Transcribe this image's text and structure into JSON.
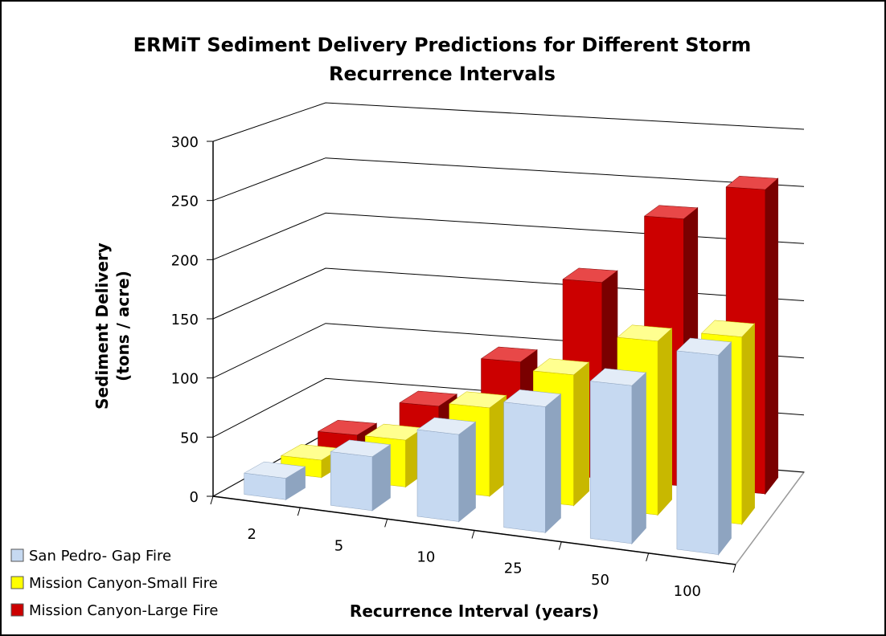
{
  "chart_data": {
    "type": "bar3d",
    "title": "ERMiT Sediment Delivery Predictions for Different Storm Recurrence Intervals",
    "x_label": "Recurrence Interval (years)",
    "y_label": "Sediment Delivery (tons / acre)",
    "categories": [
      "2",
      "5",
      "10",
      "25",
      "50",
      "100"
    ],
    "series": [
      {
        "name": "San Pedro- Gap Fire",
        "color": "#c6d9f1",
        "values": [
          18,
          45,
          72,
          103,
          128,
          160
        ]
      },
      {
        "name": "Mission Canyon-Small Fire",
        "color": "#ffff00",
        "values": [
          15,
          40,
          75,
          110,
          145,
          155
        ]
      },
      {
        "name": "Mission Canyon-Large Fire",
        "color": "#cc0000",
        "values": [
          18,
          50,
          95,
          170,
          230,
          260
        ]
      }
    ],
    "ylim": [
      0,
      300
    ],
    "yticks": [
      0,
      50,
      100,
      150,
      200,
      250,
      300
    ],
    "grid": true,
    "legend": "bottom-left"
  }
}
